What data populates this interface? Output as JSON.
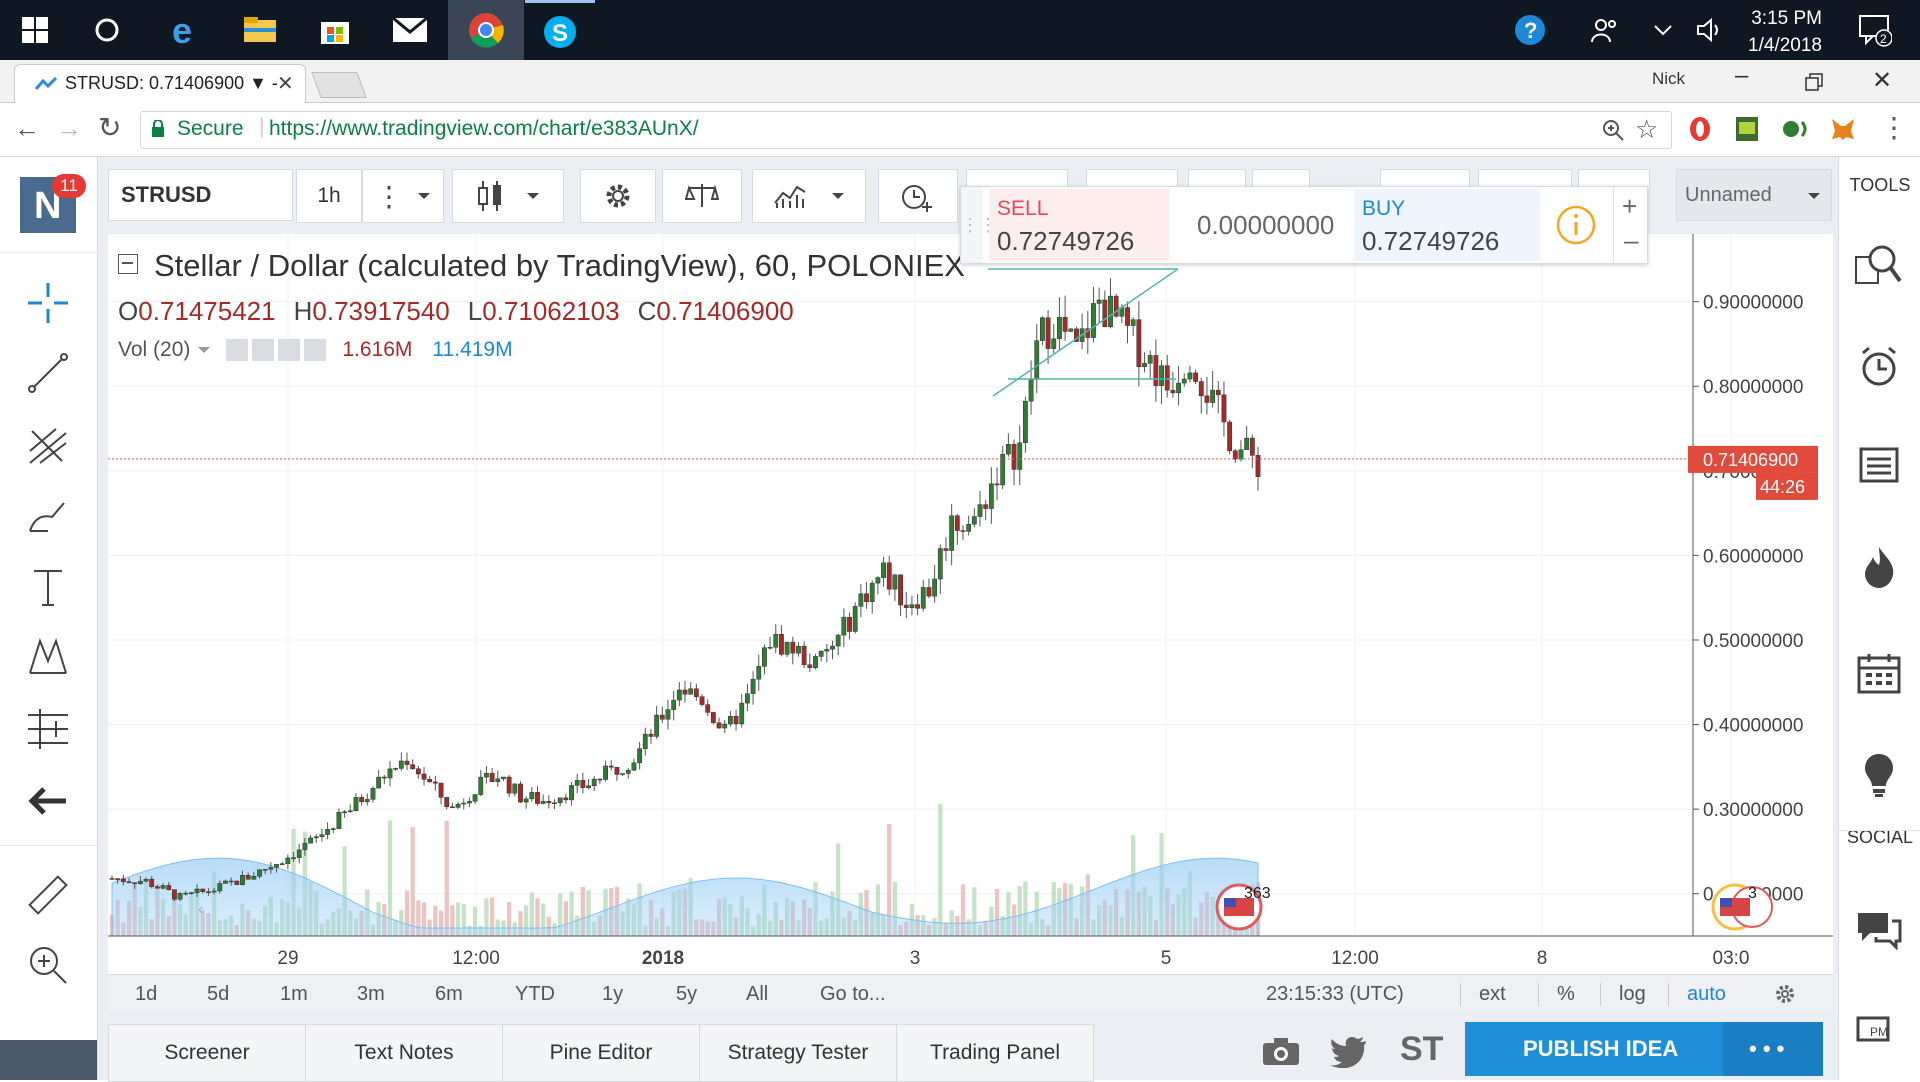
{
  "taskbar": {
    "time": "3:15 PM",
    "date": "1/4/2018",
    "notif_count": "2"
  },
  "browser": {
    "tab_title": "STRUSD: 0.71406900 ▼ -",
    "user": "Nick",
    "secure_label": "Secure",
    "url": "https://www.tradingview.com/chart/e383AUnX/"
  },
  "toolbar": {
    "symbol": "STRUSD",
    "interval": "1h",
    "layout_name": "Unnamed",
    "tools_label": "TOOLS",
    "social_label": "SOCIAL",
    "notifications_badge": "11",
    "avatar_letter": "N"
  },
  "trade": {
    "sell_label": "SELL",
    "sell_price": "0.72749726",
    "spread": "0.00000000",
    "buy_label": "BUY",
    "buy_price": "0.72749726"
  },
  "legend": {
    "title": "Stellar / Dollar (calculated by TradingView), 60, POLONIEX",
    "o_label": "O",
    "o": "0.71475421",
    "h_label": "H",
    "h": "0.73917540",
    "l_label": "L",
    "l": "0.71062103",
    "c_label": "C",
    "c": "0.71406900",
    "vol_label": "Vol (20)",
    "vol_value": "1.616M",
    "vol_ma": "11.419M"
  },
  "price_tag": {
    "value": "0.71406900",
    "countdown": "44:26"
  },
  "events": {
    "count_left": "363",
    "count_right": "3"
  },
  "bottom": {
    "ranges": [
      "1d",
      "5d",
      "1m",
      "3m",
      "6m",
      "YTD",
      "1y",
      "5y",
      "All"
    ],
    "goto": "Go to...",
    "clock": "23:15:33 (UTC)",
    "ext": "ext",
    "percent": "%",
    "log": "log",
    "auto": "auto"
  },
  "panels": {
    "tabs": [
      "Screener",
      "Text Notes",
      "Pine Editor",
      "Strategy Tester",
      "Trading Panel"
    ],
    "st_label": "ST",
    "publish": "PUBLISH IDEA",
    "more": "• • •"
  },
  "colors": {
    "up": "#2e7d32",
    "down": "#a52a2a",
    "accent": "#1e88d8",
    "price_line": "#e05c5c",
    "volume_ma": "#9fd1f5"
  },
  "chart_data": {
    "type": "candlestick",
    "symbol": "STRUSD",
    "title": "Stellar / Dollar (calculated by TradingView), 60, POLONIEX",
    "interval": "60",
    "exchange": "POLONIEX",
    "ylim": [
      0.15,
      0.98
    ],
    "y_ticks": [
      0.2,
      0.3,
      0.4,
      0.5,
      0.6,
      0.7,
      0.8,
      0.9
    ],
    "y_tick_labels": [
      "0.20000000",
      "0.30000000",
      "0.40000000",
      "0.50000000",
      "0.60000000",
      "0.70000000",
      "0.80000000",
      "0.90000000"
    ],
    "x_tick_labels": [
      "29",
      "12:00",
      "2018",
      "3",
      "5",
      "12:00",
      "8",
      "03:0"
    ],
    "last_price": 0.714069,
    "close_path": [
      {
        "t": 0,
        "p": 0.218
      },
      {
        "t": 6,
        "p": 0.215
      },
      {
        "t": 12,
        "p": 0.195
      },
      {
        "t": 18,
        "p": 0.205
      },
      {
        "t": 24,
        "p": 0.22
      },
      {
        "t": 30,
        "p": 0.24
      },
      {
        "t": 36,
        "p": 0.265
      },
      {
        "t": 42,
        "p": 0.3
      },
      {
        "t": 48,
        "p": 0.34
      },
      {
        "t": 52,
        "p": 0.36
      },
      {
        "t": 56,
        "p": 0.33
      },
      {
        "t": 60,
        "p": 0.3
      },
      {
        "t": 64,
        "p": 0.325
      },
      {
        "t": 68,
        "p": 0.34
      },
      {
        "t": 72,
        "p": 0.315
      },
      {
        "t": 76,
        "p": 0.31
      },
      {
        "t": 80,
        "p": 0.32
      },
      {
        "t": 84,
        "p": 0.33
      },
      {
        "t": 88,
        "p": 0.345
      },
      {
        "t": 92,
        "p": 0.36
      },
      {
        "t": 96,
        "p": 0.4
      },
      {
        "t": 100,
        "p": 0.445
      },
      {
        "t": 104,
        "p": 0.43
      },
      {
        "t": 108,
        "p": 0.39
      },
      {
        "t": 112,
        "p": 0.43
      },
      {
        "t": 116,
        "p": 0.5
      },
      {
        "t": 120,
        "p": 0.49
      },
      {
        "t": 124,
        "p": 0.47
      },
      {
        "t": 128,
        "p": 0.5
      },
      {
        "t": 132,
        "p": 0.55
      },
      {
        "t": 136,
        "p": 0.58
      },
      {
        "t": 140,
        "p": 0.545
      },
      {
        "t": 144,
        "p": 0.56
      },
      {
        "t": 148,
        "p": 0.64
      },
      {
        "t": 152,
        "p": 0.64
      },
      {
        "t": 156,
        "p": 0.7
      },
      {
        "t": 160,
        "p": 0.73
      },
      {
        "t": 163,
        "p": 0.85
      },
      {
        "t": 166,
        "p": 0.88
      },
      {
        "t": 170,
        "p": 0.84
      },
      {
        "t": 174,
        "p": 0.9
      },
      {
        "t": 178,
        "p": 0.87
      },
      {
        "t": 182,
        "p": 0.84
      },
      {
        "t": 186,
        "p": 0.8
      },
      {
        "t": 190,
        "p": 0.84
      },
      {
        "t": 194,
        "p": 0.78
      },
      {
        "t": 198,
        "p": 0.73
      },
      {
        "t": 202,
        "p": 0.71
      }
    ]
  }
}
